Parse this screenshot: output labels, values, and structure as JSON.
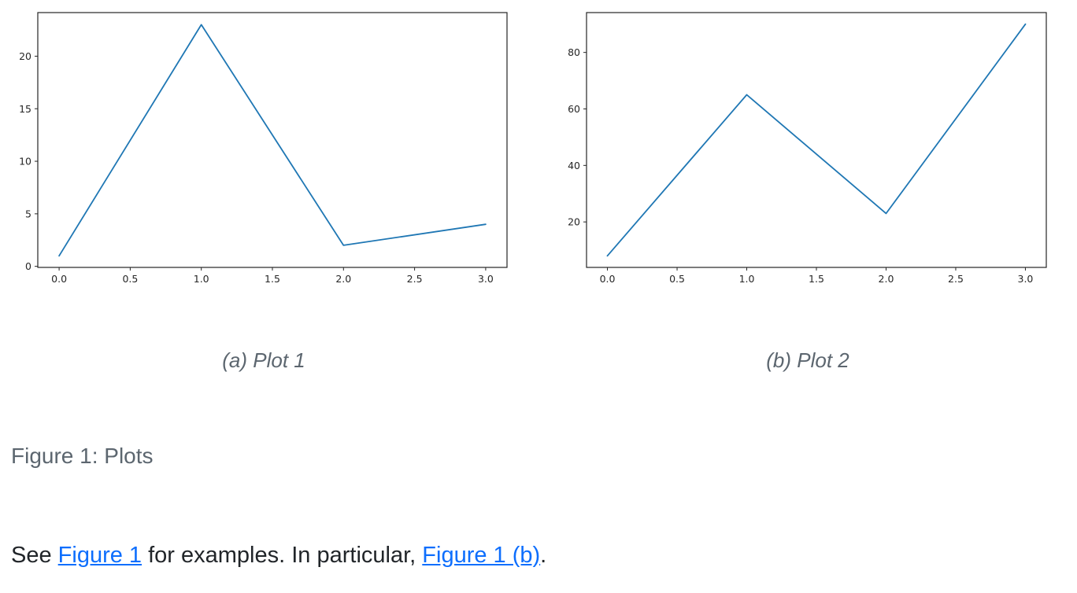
{
  "figure": {
    "caption": "Figure 1: Plots"
  },
  "paragraph": {
    "text_before": "See ",
    "link1": "Figure 1",
    "text_middle": " for examples. In particular, ",
    "link2": "Figure 1 (b)",
    "text_after": "."
  },
  "colors": {
    "line": "#1f77b4",
    "link": "#0d6efd",
    "caption_text": "#5c666f",
    "body_text": "#212529",
    "axis": "#262626"
  },
  "chart_data": [
    {
      "type": "line",
      "caption": "(a) Plot 1",
      "title": "",
      "xlabel": "",
      "ylabel": "",
      "x": [
        0,
        1,
        2,
        3
      ],
      "y": [
        1,
        23,
        2,
        4
      ],
      "x_tick_values": [
        0,
        0.5,
        1,
        1.5,
        2,
        2.5,
        3
      ],
      "x_tick_labels": [
        "0.0",
        "0.5",
        "1.0",
        "1.5",
        "2.0",
        "2.5",
        "3.0"
      ],
      "y_tick_values": [
        0,
        5,
        10,
        15,
        20
      ],
      "y_tick_labels": [
        "0",
        "5",
        "10",
        "15",
        "20"
      ],
      "xlim": [
        -0.15,
        3.15
      ],
      "ylim": [
        -0.1,
        24.15
      ],
      "grid": false,
      "legend": null,
      "line_color": "#1f77b4"
    },
    {
      "type": "line",
      "caption": "(b) Plot 2",
      "title": "",
      "xlabel": "",
      "ylabel": "",
      "x": [
        0,
        1,
        2,
        3
      ],
      "y": [
        8,
        65,
        23,
        90
      ],
      "x_tick_values": [
        0,
        0.5,
        1,
        1.5,
        2,
        2.5,
        3
      ],
      "x_tick_labels": [
        "0.0",
        "0.5",
        "1.0",
        "1.5",
        "2.0",
        "2.5",
        "3.0"
      ],
      "y_tick_values": [
        20,
        40,
        60,
        80
      ],
      "y_tick_labels": [
        "20",
        "40",
        "60",
        "80"
      ],
      "xlim": [
        -0.15,
        3.15
      ],
      "ylim": [
        3.9,
        94.1
      ],
      "grid": false,
      "legend": null,
      "line_color": "#1f77b4"
    }
  ]
}
